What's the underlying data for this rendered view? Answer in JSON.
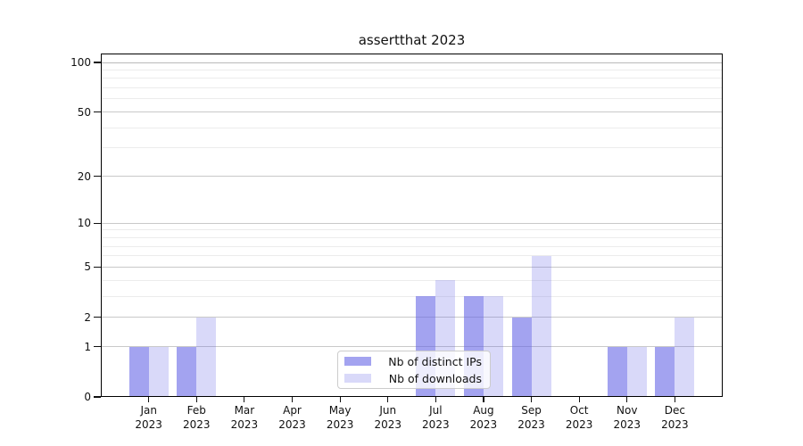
{
  "title": "assertthat 2023",
  "legend": {
    "items": [
      {
        "name": "distinct-ips",
        "label": "Nb of distinct IPs",
        "css": "rgba(102,102,230,0.6)"
      },
      {
        "name": "downloads",
        "label": "Nb of downloads",
        "css": "rgba(102,102,230,0.25)"
      }
    ]
  },
  "axes": {
    "y_major_ticks": [
      0,
      1,
      2,
      5,
      10,
      20,
      50,
      100
    ],
    "y_minor_gridlines": [
      3,
      4,
      6,
      7,
      8,
      9,
      30,
      40,
      60,
      70,
      80,
      90
    ],
    "x_year_line": "2023"
  },
  "chart_data": {
    "type": "bar",
    "title": "assertthat 2023",
    "categories": [
      "Jan 2023",
      "Feb 2023",
      "Mar 2023",
      "Apr 2023",
      "May 2023",
      "Jun 2023",
      "Jul 2023",
      "Aug 2023",
      "Sep 2023",
      "Oct 2023",
      "Nov 2023",
      "Dec 2023"
    ],
    "month_labels": [
      "Jan",
      "Feb",
      "Mar",
      "Apr",
      "May",
      "Jun",
      "Jul",
      "Aug",
      "Sep",
      "Oct",
      "Nov",
      "Dec"
    ],
    "series": [
      {
        "name": "Nb of distinct IPs",
        "color": "#a3a3f0",
        "css": "rgba(102,102,230,0.6)",
        "values": [
          1,
          1,
          0,
          0,
          0,
          0,
          3,
          3,
          2,
          0,
          1,
          1
        ]
      },
      {
        "name": "Nb of downloads",
        "color": "#d9d9f6",
        "css": "rgba(102,102,230,0.25)",
        "values": [
          1,
          2,
          0,
          0,
          0,
          0,
          4,
          3,
          6,
          0,
          1,
          2
        ]
      }
    ],
    "yscale": "log1p",
    "y_ticks": [
      0,
      1,
      2,
      5,
      10,
      20,
      50,
      100
    ],
    "ylim": [
      0,
      113
    ],
    "grid": "both",
    "legend_position": "lower center"
  }
}
